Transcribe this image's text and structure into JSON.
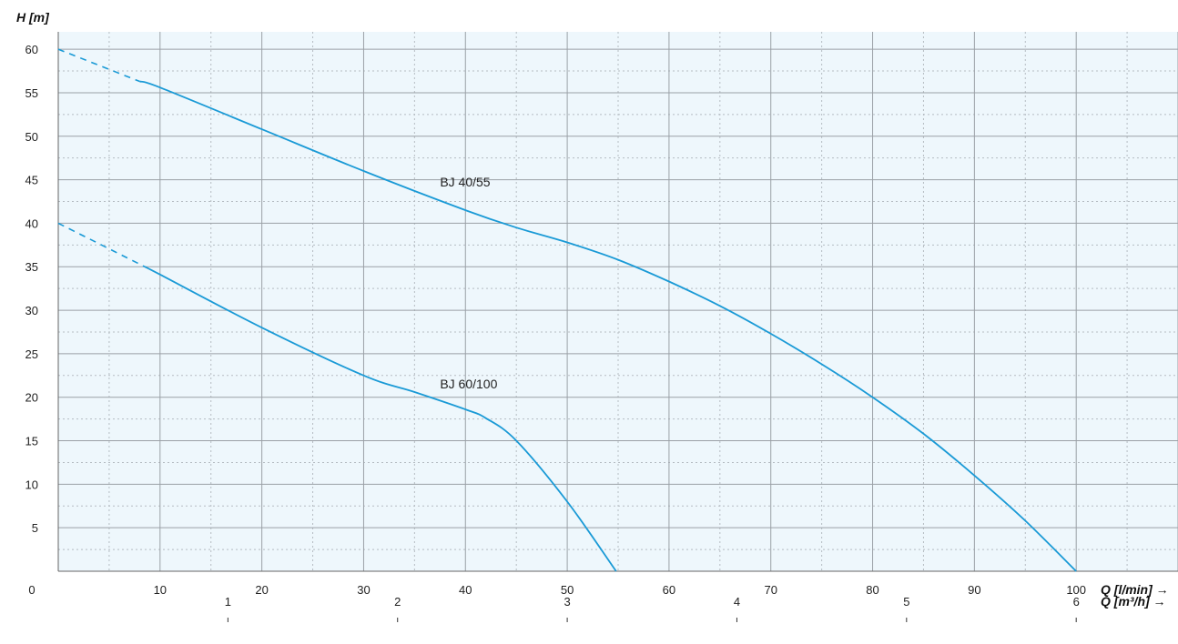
{
  "chart_data": {
    "type": "line",
    "title": "",
    "ylabel": "H [m]",
    "xlabel": "Q [l/min] →",
    "x2label": "Q [m³/h] →",
    "xlim": [
      0,
      110
    ],
    "ylim": [
      0,
      62
    ],
    "x_ticks": [
      10,
      20,
      30,
      40,
      50,
      60,
      70,
      80,
      90,
      100
    ],
    "y_ticks": [
      5,
      10,
      15,
      20,
      25,
      30,
      35,
      40,
      45,
      50,
      55,
      60
    ],
    "origin_label": "0",
    "x2_ticks": [
      {
        "label": "1",
        "value": 16.667
      },
      {
        "label": "2",
        "value": 33.333
      },
      {
        "label": "3",
        "value": 50
      },
      {
        "label": "4",
        "value": 66.667
      },
      {
        "label": "5",
        "value": 83.333
      },
      {
        "label": "6",
        "value": 100
      }
    ],
    "grid": true,
    "colors": {
      "series": "#1a9ad6",
      "plot_bg": "#eef7fc",
      "grid_major": "#9aa0a6",
      "grid_minor": "#b5bcc2"
    },
    "series": [
      {
        "name": "BJ 40/55",
        "dashed": [
          [
            0,
            60
          ],
          [
            8,
            56.3
          ]
        ],
        "values": [
          [
            8,
            56.3
          ],
          [
            10,
            55.6
          ],
          [
            20,
            50.8
          ],
          [
            30,
            46
          ],
          [
            40,
            41.5
          ],
          [
            45,
            39.5
          ],
          [
            50,
            37.8
          ],
          [
            55,
            35.8
          ],
          [
            60,
            33.3
          ],
          [
            65,
            30.5
          ],
          [
            70,
            27.3
          ],
          [
            75,
            23.8
          ],
          [
            80,
            20
          ],
          [
            85,
            15.8
          ],
          [
            90,
            11
          ],
          [
            95,
            5.8
          ],
          [
            100,
            0
          ]
        ]
      },
      {
        "name": "BJ 60/100",
        "dashed": [
          [
            0,
            40
          ],
          [
            8.5,
            35
          ]
        ],
        "values": [
          [
            8.5,
            35
          ],
          [
            10,
            34.1
          ],
          [
            20,
            28
          ],
          [
            30,
            22.5
          ],
          [
            35,
            20.6
          ],
          [
            40,
            18.6
          ],
          [
            42,
            17.6
          ],
          [
            45,
            15
          ],
          [
            50,
            8
          ],
          [
            54.8,
            0
          ]
        ]
      }
    ]
  }
}
